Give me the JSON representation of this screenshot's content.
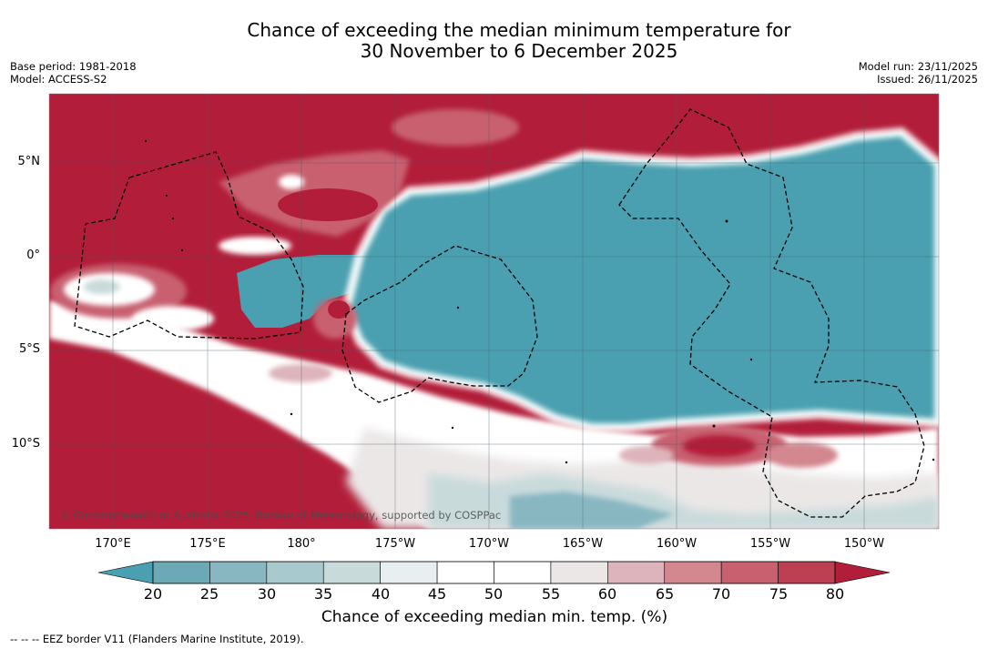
{
  "title": {
    "line1": "Chance of exceeding the median minimum temperature for",
    "line2": "30 November to 6 December 2025"
  },
  "meta": {
    "base_period": "Base period: 1981-2018",
    "model": "Model: ACCESS-S2",
    "model_run": "Model run: 23/11/2025",
    "issued": "Issued: 26/11/2025"
  },
  "map": {
    "latitude_labels": [
      "5°N",
      "0°",
      "5°S",
      "10°S"
    ],
    "latitudes": [
      5,
      0,
      -5,
      -10
    ],
    "longitude_labels": [
      "170°E",
      "175°E",
      "180°",
      "175°W",
      "170°W",
      "165°W",
      "160°W",
      "155°W",
      "150°W"
    ],
    "copyright": "© Commonwealth of Australia 2025, Bureau of Meteorology, supported by COSPPac"
  },
  "colorbar": {
    "ticks": [
      "20",
      "25",
      "30",
      "35",
      "40",
      "45",
      "50",
      "55",
      "60",
      "65",
      "70",
      "75",
      "80"
    ],
    "colors": {
      "under": "#4aa0b0",
      "bins": [
        "#6aa9b5",
        "#88b7c2",
        "#a8c9cd",
        "#c9dadb",
        "#e8eff1",
        "#ffffff",
        "#ffffff",
        "#ebe7e7",
        "#ddb4bb",
        "#d3878f",
        "#c86070",
        "#bc3f52"
      ],
      "over": "#b21e39"
    },
    "title": "Chance of exceeding median min. temp. (%)"
  },
  "footnote": "--  --  -- EEZ border V11 (Flanders Marine Institute, 2019)."
}
